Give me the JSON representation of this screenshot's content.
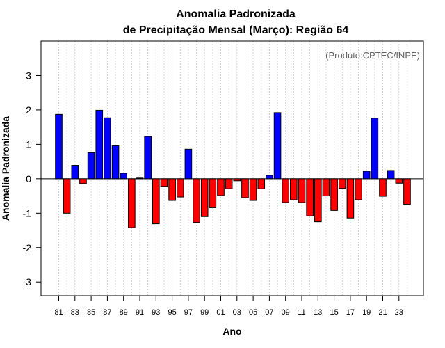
{
  "chart_data": {
    "type": "bar",
    "title": "Anomalia Padronizada",
    "subtitle": "de Precipitação Mensal (Março): Região 64",
    "xlabel": "Ano",
    "ylabel": "Anomalia Padronizada",
    "credit": "(Produto:CPTEC/INPE)",
    "ylim": [
      -3.4,
      4.0
    ],
    "yticks": [
      -3,
      -2,
      -1,
      0,
      1,
      2,
      3
    ],
    "grid": "vertical dotted",
    "colors": {
      "positive": "#0000ff",
      "negative": "#ff0000",
      "grid": "#d3d3d3"
    },
    "categories": [
      "81",
      "82",
      "83",
      "84",
      "85",
      "86",
      "87",
      "88",
      "89",
      "90",
      "91",
      "92",
      "93",
      "94",
      "95",
      "96",
      "97",
      "98",
      "99",
      "00",
      "01",
      "02",
      "03",
      "04",
      "05",
      "06",
      "07",
      "08",
      "09",
      "10",
      "11",
      "12",
      "13",
      "14",
      "15",
      "16",
      "17",
      "18",
      "19",
      "20",
      "21",
      "22",
      "23",
      "24"
    ],
    "tick_labels": [
      "81",
      "83",
      "85",
      "87",
      "89",
      "91",
      "93",
      "95",
      "97",
      "99",
      "01",
      "03",
      "05",
      "07",
      "09",
      "11",
      "13",
      "15",
      "17",
      "19",
      "21",
      "23"
    ],
    "values": [
      1.87,
      -1.0,
      0.39,
      -0.14,
      0.76,
      1.99,
      1.77,
      0.96,
      0.16,
      -1.42,
      0.02,
      1.23,
      -1.31,
      -0.22,
      -0.63,
      -0.53,
      0.86,
      -1.27,
      -1.1,
      -0.84,
      -0.49,
      -0.29,
      -0.06,
      -0.55,
      -0.63,
      -0.29,
      0.1,
      1.92,
      -0.69,
      -0.61,
      -0.69,
      -1.08,
      -1.25,
      -0.5,
      -0.92,
      -0.28,
      -1.14,
      -0.61,
      0.22,
      1.76,
      -0.51,
      0.24,
      -0.13,
      -0.74
    ]
  }
}
